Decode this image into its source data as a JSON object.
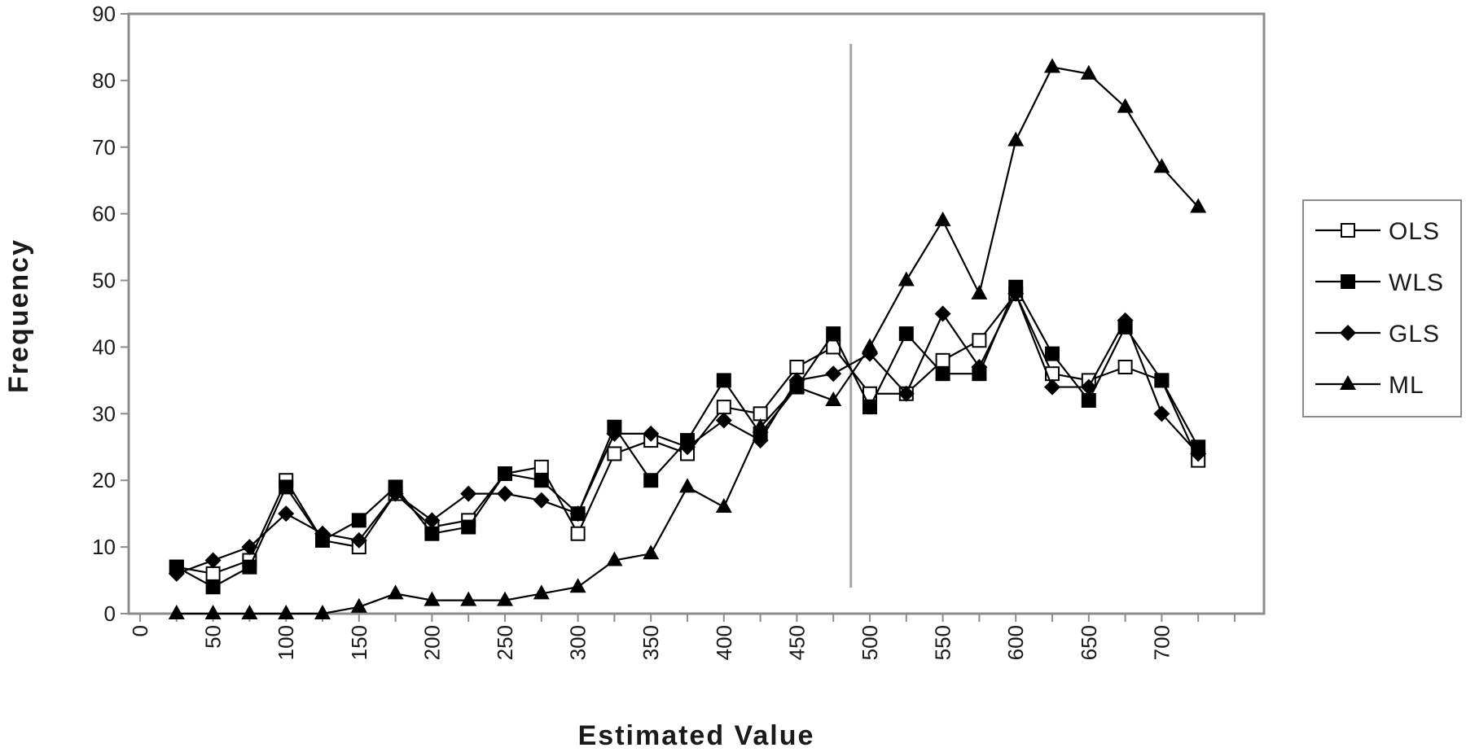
{
  "chart_data": {
    "type": "line",
    "title": "",
    "xlabel": "Estimated Value",
    "ylabel": "Frequency",
    "xlim": [
      0,
      750
    ],
    "ylim": [
      0,
      90
    ],
    "x_ticks": [
      0,
      50,
      100,
      150,
      200,
      250,
      300,
      350,
      400,
      450,
      500,
      550,
      600,
      650,
      700
    ],
    "y_ticks": [
      0,
      10,
      20,
      30,
      40,
      50,
      60,
      70,
      80,
      90
    ],
    "x": [
      25,
      50,
      75,
      100,
      125,
      150,
      175,
      200,
      225,
      250,
      275,
      300,
      325,
      350,
      375,
      400,
      425,
      450,
      475,
      500,
      525,
      550,
      575,
      600,
      625,
      650,
      675,
      700,
      725
    ],
    "reference_line_x": 487,
    "grid": false,
    "legend_position": "right",
    "series": [
      {
        "name": "OLS",
        "marker": "open-square",
        "values": [
          7,
          6,
          8,
          20,
          11,
          10,
          18,
          13,
          14,
          21,
          22,
          12,
          24,
          26,
          24,
          31,
          30,
          37,
          40,
          33,
          33,
          38,
          41,
          48,
          36,
          35,
          37,
          35,
          23
        ]
      },
      {
        "name": "WLS",
        "marker": "filled-square",
        "values": [
          7,
          4,
          7,
          19,
          11,
          14,
          19,
          12,
          13,
          21,
          20,
          15,
          28,
          20,
          26,
          35,
          27,
          34,
          42,
          31,
          42,
          36,
          36,
          49,
          39,
          32,
          43,
          35,
          25
        ]
      },
      {
        "name": "GLS",
        "marker": "filled-diamond",
        "values": [
          6,
          8,
          10,
          15,
          12,
          11,
          18,
          14,
          18,
          18,
          17,
          15,
          27,
          27,
          25,
          29,
          26,
          35,
          36,
          39,
          33,
          45,
          37,
          48,
          34,
          34,
          44,
          30,
          24
        ]
      },
      {
        "name": "ML",
        "marker": "filled-triangle",
        "values": [
          0,
          0,
          0,
          0,
          0,
          1,
          3,
          2,
          2,
          2,
          3,
          4,
          8,
          9,
          19,
          16,
          28,
          34,
          32,
          40,
          50,
          59,
          48,
          71,
          82,
          81,
          76,
          67,
          61
        ]
      }
    ]
  }
}
